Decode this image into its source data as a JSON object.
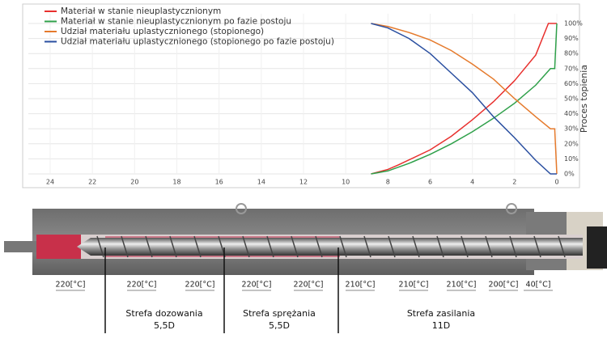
{
  "chart_data": {
    "type": "line",
    "y_label": "Proces topienia",
    "xlim": [
      24,
      0
    ],
    "xticks": [
      24,
      22,
      20,
      18,
      16,
      14,
      12,
      10,
      8,
      6,
      4,
      2,
      0
    ],
    "ylim": [
      0,
      100
    ],
    "yticks": [
      {
        "value": 0,
        "label": "0%"
      },
      {
        "value": 10,
        "label": "10%"
      },
      {
        "value": 20,
        "label": "20%"
      },
      {
        "value": 30,
        "label": "30%"
      },
      {
        "value": 40,
        "label": "40%"
      },
      {
        "value": 50,
        "label": "50%"
      },
      {
        "value": 60,
        "label": "60%"
      },
      {
        "value": 70,
        "label": "70%"
      },
      {
        "value": 80,
        "label": "80%"
      },
      {
        "value": 90,
        "label": "90%"
      },
      {
        "value": 100,
        "label": "100%"
      }
    ],
    "grid": true,
    "series": [
      {
        "name": "Materiał w stanie nieuplastycznionym",
        "color": "#e8302e",
        "x": [
          8.8,
          8,
          7.5,
          6,
          5,
          4,
          3,
          2,
          1,
          0.4,
          0
        ],
        "values": [
          0,
          3,
          6,
          16,
          25,
          36,
          48,
          62,
          79,
          100,
          100
        ]
      },
      {
        "name": "Materiał w stanie nieuplastycznionym po fazie postoju",
        "color": "#2fa04a",
        "x": [
          8.8,
          8,
          7,
          6,
          5,
          4,
          3,
          2,
          1,
          0.3,
          0.1,
          0
        ],
        "values": [
          0,
          2,
          7,
          13,
          20,
          28,
          37,
          47,
          59,
          70,
          70,
          100
        ]
      },
      {
        "name": "Udział materiału uplastycznionego (stopionego)",
        "color": "#e57a2c",
        "x": [
          8.8,
          8,
          7,
          6,
          5,
          4,
          3,
          2,
          1,
          0.3,
          0.1,
          0
        ],
        "values": [
          100,
          98,
          94,
          89,
          82,
          73,
          63,
          50,
          38,
          30,
          30,
          0
        ]
      },
      {
        "name": "Udział materiału uplastycznionego (stopionego po fazie postoju)",
        "color": "#2a4fa0",
        "x": [
          8.8,
          8,
          7,
          6,
          5,
          4,
          3,
          2,
          1,
          0.3,
          0
        ],
        "values": [
          100,
          97,
          90,
          80,
          67,
          54,
          38,
          24,
          9,
          0,
          0
        ]
      }
    ]
  },
  "diagram": {
    "temperatures": [
      "220[°C]",
      "220[°C]",
      "220[°C]",
      "220[°C]",
      "220[°C]",
      "210[°C]",
      "210[°C]",
      "210[°C]",
      "200[°C]",
      "40[°C]"
    ],
    "zones": [
      {
        "name": "Strefa dozowania",
        "length": "5,5D"
      },
      {
        "name": "Strefa sprężania",
        "length": "5,5D"
      },
      {
        "name": "Strefa zasilania",
        "length": "11D"
      }
    ]
  }
}
